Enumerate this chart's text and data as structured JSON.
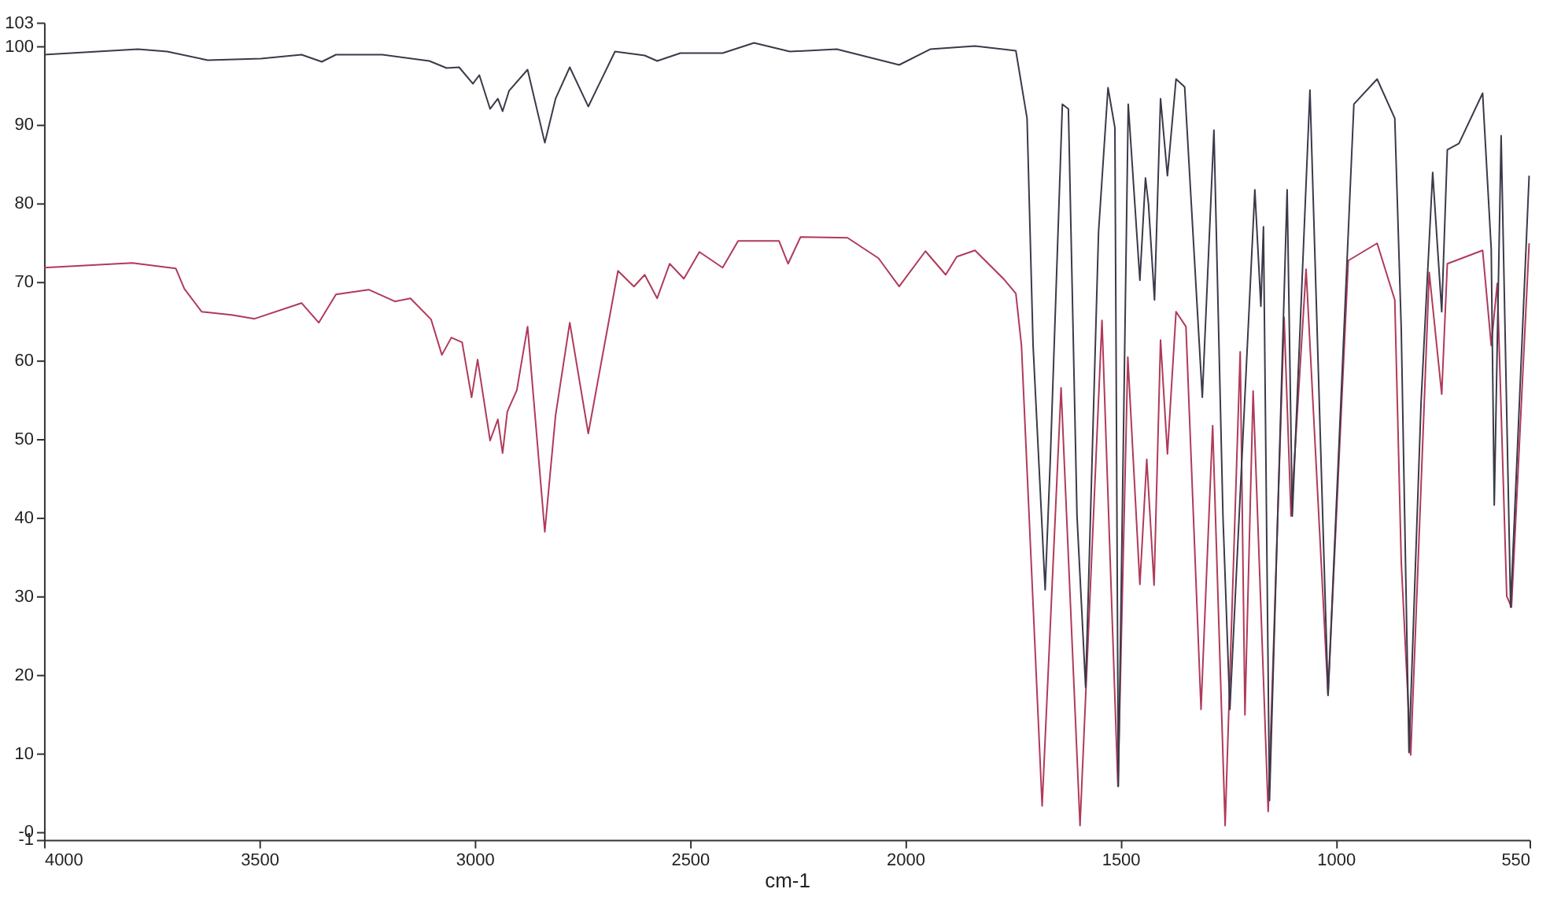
{
  "chart_data": {
    "type": "line",
    "xlabel": "cm-1",
    "xlim": [
      4000,
      550
    ],
    "xticks": [
      4000,
      3500,
      3000,
      2500,
      2000,
      1500,
      1000,
      550
    ],
    "ylim": [
      -1,
      103
    ],
    "yticks": [
      {
        "value": -1,
        "label": "-1"
      },
      {
        "value": 0,
        "label": "-0"
      },
      10,
      20,
      30,
      40,
      50,
      60,
      70,
      80,
      90,
      100,
      103
    ],
    "grid": false,
    "series": [
      {
        "color": "#b03a5a",
        "x": [
          4000,
          3795,
          3694,
          3674,
          3634,
          3565,
          3511,
          3402,
          3362,
          3322,
          3246,
          3185,
          3149,
          3101,
          3076,
          3054,
          3029,
          3007,
          2993,
          2964,
          2946,
          2935,
          2924,
          2902,
          2877,
          2837,
          2812,
          2779,
          2736,
          2667,
          2630,
          2605,
          2576,
          2547,
          2514,
          2478,
          2424,
          2388,
          2293,
          2272,
          2243,
          2134,
          2062,
          2014,
          1953,
          1906,
          1880,
          1838,
          1772,
          1743,
          1730,
          1682,
          1638,
          1594,
          1543,
          1506,
          1483,
          1455,
          1439,
          1422,
          1407,
          1391,
          1371,
          1348,
          1313,
          1286,
          1257,
          1222,
          1211,
          1192,
          1157,
          1120,
          1104,
          1069,
          1018,
          971,
          904,
          863,
          848,
          826,
          783,
          754,
          741,
          659,
          639,
          625,
          603,
          592,
          551
        ],
        "values": [
          71.8,
          72.4,
          71.7,
          69.1,
          66.2,
          65.8,
          65.3,
          67.3,
          64.8,
          68.4,
          69.0,
          67.5,
          67.9,
          65.2,
          60.7,
          62.9,
          62.3,
          55.3,
          60.1,
          49.8,
          52.5,
          48.2,
          53.5,
          56.2,
          64.3,
          38.2,
          53.0,
          64.8,
          50.7,
          71.4,
          69.4,
          70.9,
          67.9,
          72.3,
          70.4,
          73.8,
          71.8,
          75.2,
          75.2,
          72.3,
          75.7,
          75.6,
          73.0,
          69.4,
          73.9,
          70.9,
          73.2,
          74.0,
          70.4,
          68.5,
          61.9,
          3.3,
          56.5,
          0.8,
          65.1,
          5.8,
          60.4,
          31.5,
          47.4,
          31.4,
          62.6,
          48.1,
          66.2,
          64.3,
          15.6,
          51.7,
          0.8,
          61.1,
          14.9,
          56.1,
          2.6,
          65.5,
          40.2,
          71.6,
          17.4,
          72.7,
          74.9,
          67.7,
          34.4,
          9.8,
          71.2,
          55.7,
          72.3,
          74.0,
          61.9,
          69.8,
          30.0,
          28.6,
          74.9
        ]
      },
      {
        "color": "#3a3a4a",
        "x": [
          4000,
          3782,
          3714,
          3620,
          3496,
          3402,
          3355,
          3322,
          3214,
          3105,
          3065,
          3036,
          3004,
          2989,
          2964,
          2946,
          2935,
          2920,
          2877,
          2837,
          2812,
          2779,
          2736,
          2674,
          2605,
          2576,
          2522,
          2424,
          2351,
          2268,
          2159,
          2014,
          1942,
          1838,
          1743,
          1717,
          1703,
          1675,
          1663,
          1635,
          1621,
          1601,
          1581,
          1551,
          1529,
          1513,
          1505,
          1482,
          1455,
          1442,
          1435,
          1421,
          1407,
          1391,
          1371,
          1351,
          1310,
          1283,
          1262,
          1246,
          1188,
          1174,
          1168,
          1154,
          1113,
          1101,
          1060,
          1018,
          958,
          904,
          863,
          848,
          830,
          802,
          775,
          754,
          741,
          714,
          659,
          639,
          632,
          616,
          594,
          551
        ],
        "values": [
          98.9,
          99.6,
          99.3,
          98.2,
          98.4,
          98.9,
          98.0,
          98.9,
          98.9,
          98.1,
          97.2,
          97.3,
          95.2,
          96.3,
          92.0,
          93.3,
          91.7,
          94.3,
          97.0,
          87.7,
          93.3,
          97.3,
          92.3,
          99.3,
          98.8,
          98.1,
          99.1,
          99.1,
          100.4,
          99.3,
          99.6,
          97.6,
          99.6,
          100.0,
          99.4,
          90.8,
          61.9,
          30.8,
          47.4,
          92.6,
          92.0,
          40.2,
          18.4,
          76.3,
          94.7,
          89.6,
          5.8,
          92.6,
          70.2,
          83.2,
          79.9,
          67.7,
          93.3,
          83.5,
          95.8,
          94.8,
          55.3,
          89.3,
          40.1,
          15.6,
          81.7,
          66.9,
          77.0,
          4.0,
          81.7,
          40.2,
          94.4,
          17.4,
          92.6,
          95.8,
          90.8,
          64.0,
          10.1,
          54.6,
          83.9,
          66.2,
          86.8,
          87.6,
          94.0,
          74.1,
          41.6,
          88.6,
          28.6,
          83.5
        ]
      }
    ]
  }
}
